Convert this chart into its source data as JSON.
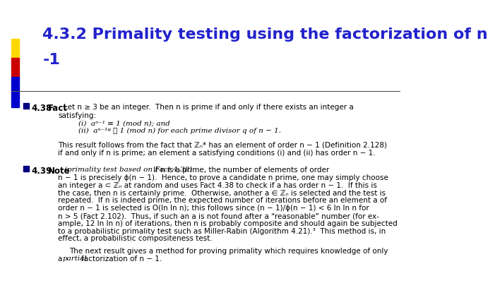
{
  "title_line1": "4.3.2 Primality testing using the factorization of n",
  "title_line2": "-1",
  "title_color": "#2222CC",
  "title_fontsize": 16,
  "bg_color": "#FFFFFF",
  "text_color": "#000000",
  "bullet_color": "#000080",
  "left_bar_colors": [
    "#FFD700",
    "#CC0000",
    "#0000CC"
  ],
  "fontsize_body": 7.5,
  "fontsize_label": 8.5
}
